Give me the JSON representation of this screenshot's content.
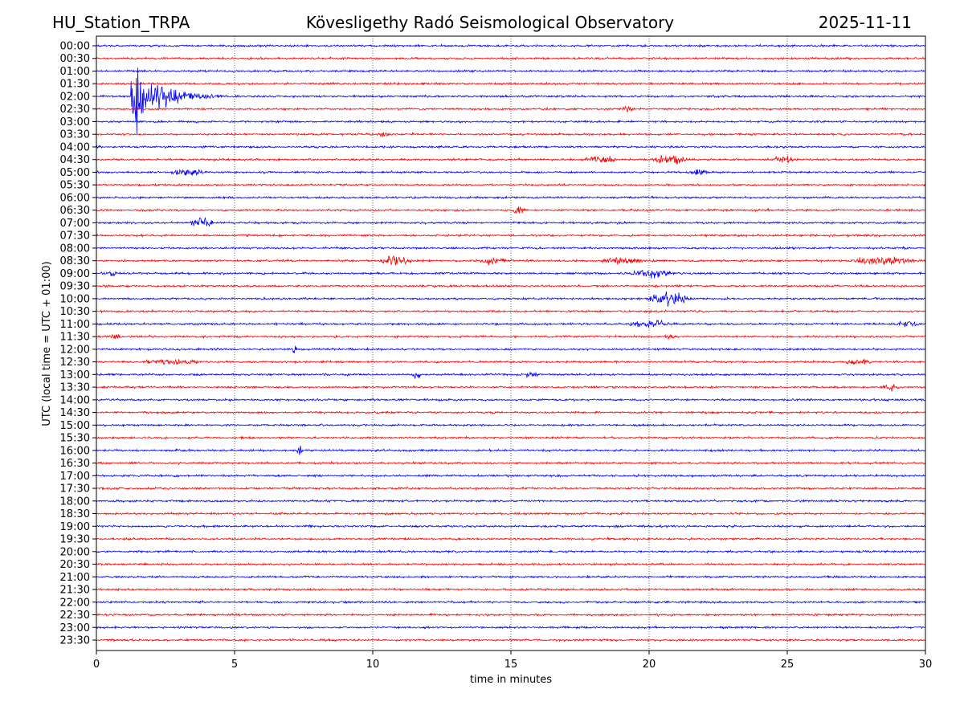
{
  "chart_data": {
    "type": "line",
    "title_left": "HU_Station_TRPA",
    "title_center": "Kövesligethy Radó Seismological Observatory",
    "title_right": "2025-11-11",
    "xlabel": "time in minutes",
    "ylabel": "UTC (local time = UTC + 01:00)",
    "xlim": [
      0,
      30
    ],
    "xticks": [
      0,
      5,
      10,
      15,
      20,
      25,
      30
    ],
    "grid": "vertical dotted",
    "colors": [
      "#0000ff",
      "#ff0000"
    ],
    "rows": [
      "00:00",
      "00:30",
      "01:00",
      "01:30",
      "02:00",
      "02:30",
      "03:00",
      "03:30",
      "04:00",
      "04:30",
      "05:00",
      "05:30",
      "06:00",
      "06:30",
      "07:00",
      "07:30",
      "08:00",
      "08:30",
      "09:00",
      "09:30",
      "10:00",
      "10:30",
      "11:00",
      "11:30",
      "12:00",
      "12:30",
      "13:00",
      "13:30",
      "14:00",
      "14:30",
      "15:00",
      "15:30",
      "16:00",
      "16:30",
      "17:00",
      "17:30",
      "18:00",
      "18:30",
      "19:00",
      "19:30",
      "20:00",
      "20:30",
      "21:00",
      "21:30",
      "22:00",
      "22:30",
      "23:00",
      "23:30"
    ],
    "events": [
      {
        "row": "02:00",
        "start_min": 1.25,
        "duration_min": 7,
        "amplitude": 36,
        "decay": 1.2
      },
      {
        "row": "02:30",
        "start_min": 18.9,
        "duration_min": 0.6,
        "amplitude": 4
      },
      {
        "row": "03:30",
        "start_min": 10.1,
        "duration_min": 0.6,
        "amplitude": 3
      },
      {
        "row": "04:30",
        "start_min": 17.5,
        "duration_min": 1.5,
        "amplitude": 3
      },
      {
        "row": "04:30",
        "start_min": 20.0,
        "duration_min": 1.5,
        "amplitude": 5
      },
      {
        "row": "04:30",
        "start_min": 24.3,
        "duration_min": 1.2,
        "amplitude": 3
      },
      {
        "row": "05:00",
        "start_min": 2.6,
        "duration_min": 1.4,
        "amplitude": 4
      },
      {
        "row": "05:00",
        "start_min": 21.4,
        "duration_min": 0.8,
        "amplitude": 3
      },
      {
        "row": "06:30",
        "start_min": 15.0,
        "duration_min": 0.6,
        "amplitude": 4
      },
      {
        "row": "07:00",
        "start_min": 3.3,
        "duration_min": 1.0,
        "amplitude": 5
      },
      {
        "row": "08:30",
        "start_min": 10.0,
        "duration_min": 1.6,
        "amplitude": 4
      },
      {
        "row": "08:30",
        "start_min": 13.6,
        "duration_min": 1.4,
        "amplitude": 3
      },
      {
        "row": "08:30",
        "start_min": 18.0,
        "duration_min": 2.0,
        "amplitude": 3
      },
      {
        "row": "08:30",
        "start_min": 27.0,
        "duration_min": 3.0,
        "amplitude": 4
      },
      {
        "row": "09:00",
        "start_min": 0.4,
        "duration_min": 0.4,
        "amplitude": 4
      },
      {
        "row": "09:00",
        "start_min": 19.2,
        "duration_min": 1.8,
        "amplitude": 4
      },
      {
        "row": "10:00",
        "start_min": 19.8,
        "duration_min": 1.8,
        "amplitude": 6
      },
      {
        "row": "11:00",
        "start_min": 19.0,
        "duration_min": 2.0,
        "amplitude": 3
      },
      {
        "row": "11:00",
        "start_min": 28.8,
        "duration_min": 1.2,
        "amplitude": 3
      },
      {
        "row": "11:30",
        "start_min": 0.4,
        "duration_min": 0.6,
        "amplitude": 3
      },
      {
        "row": "11:30",
        "start_min": 20.4,
        "duration_min": 0.6,
        "amplitude": 3
      },
      {
        "row": "12:00",
        "start_min": 7.0,
        "duration_min": 0.3,
        "amplitude": 4
      },
      {
        "row": "12:30",
        "start_min": 1.4,
        "duration_min": 2.6,
        "amplitude": 3
      },
      {
        "row": "12:30",
        "start_min": 27.0,
        "duration_min": 1.2,
        "amplitude": 3
      },
      {
        "row": "13:00",
        "start_min": 11.4,
        "duration_min": 0.4,
        "amplitude": 3
      },
      {
        "row": "13:00",
        "start_min": 15.4,
        "duration_min": 0.6,
        "amplitude": 3
      },
      {
        "row": "13:30",
        "start_min": 28.4,
        "duration_min": 0.8,
        "amplitude": 3
      },
      {
        "row": "16:00",
        "start_min": 7.2,
        "duration_min": 0.3,
        "amplitude": 4
      }
    ]
  }
}
